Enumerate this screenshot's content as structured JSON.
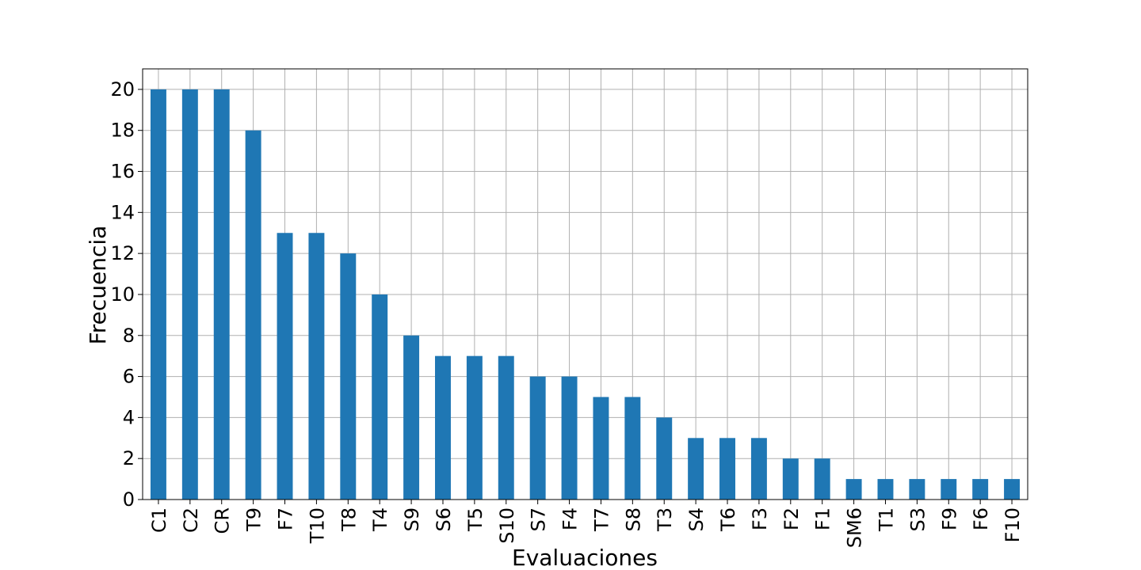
{
  "chart_data": {
    "type": "bar",
    "xlabel": "Evaluaciones",
    "ylabel": "Frecuencia",
    "categories": [
      "C1",
      "C2",
      "CR",
      "T9",
      "F7",
      "T10",
      "T8",
      "T4",
      "S9",
      "S6",
      "T5",
      "S10",
      "S7",
      "F4",
      "T7",
      "S8",
      "T3",
      "S4",
      "T6",
      "F3",
      "F2",
      "F1",
      "SM6",
      "T1",
      "S3",
      "F9",
      "F6",
      "F10"
    ],
    "values": [
      20,
      20,
      20,
      18,
      13,
      13,
      12,
      10,
      8,
      7,
      7,
      7,
      6,
      6,
      5,
      5,
      4,
      3,
      3,
      3,
      2,
      2,
      1,
      1,
      1,
      1,
      1,
      1
    ],
    "ylim": [
      0,
      21
    ],
    "yticks": [
      0,
      2,
      4,
      6,
      8,
      10,
      12,
      14,
      16,
      18,
      20
    ],
    "grid": true,
    "legend": "none",
    "bar_color": "#1f77b4"
  }
}
